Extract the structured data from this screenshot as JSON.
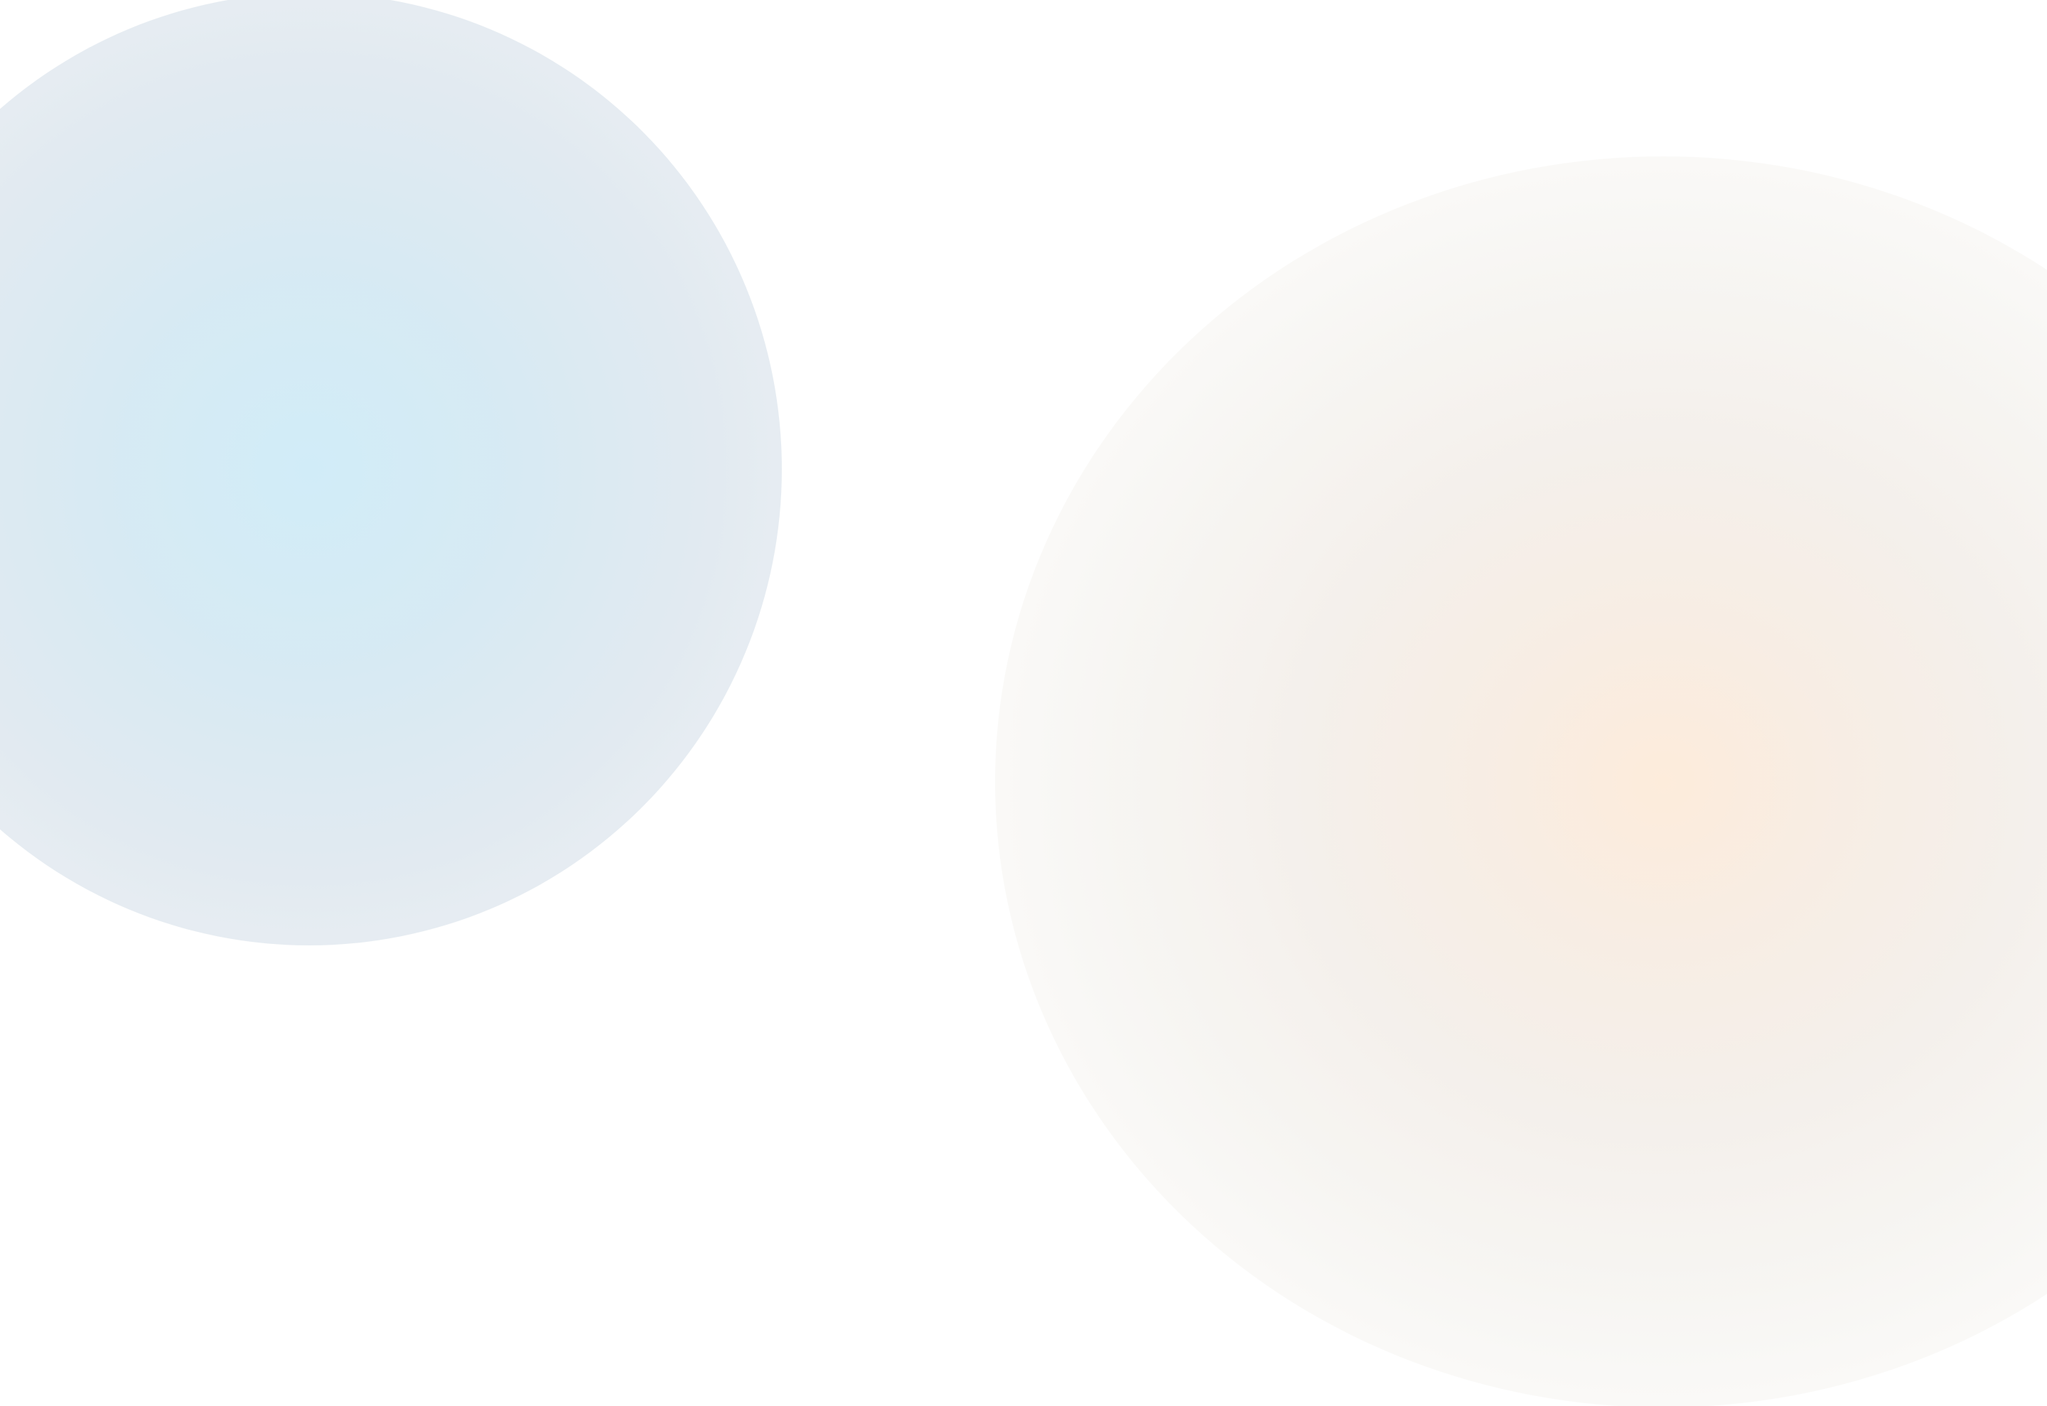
{
  "colors": {
    "background": "#ffffff",
    "blob_left": "#d1ecf8",
    "blob_right": "#fdecdb"
  },
  "decorations": [
    "blue-gradient-blob",
    "peach-gradient-blob"
  ]
}
